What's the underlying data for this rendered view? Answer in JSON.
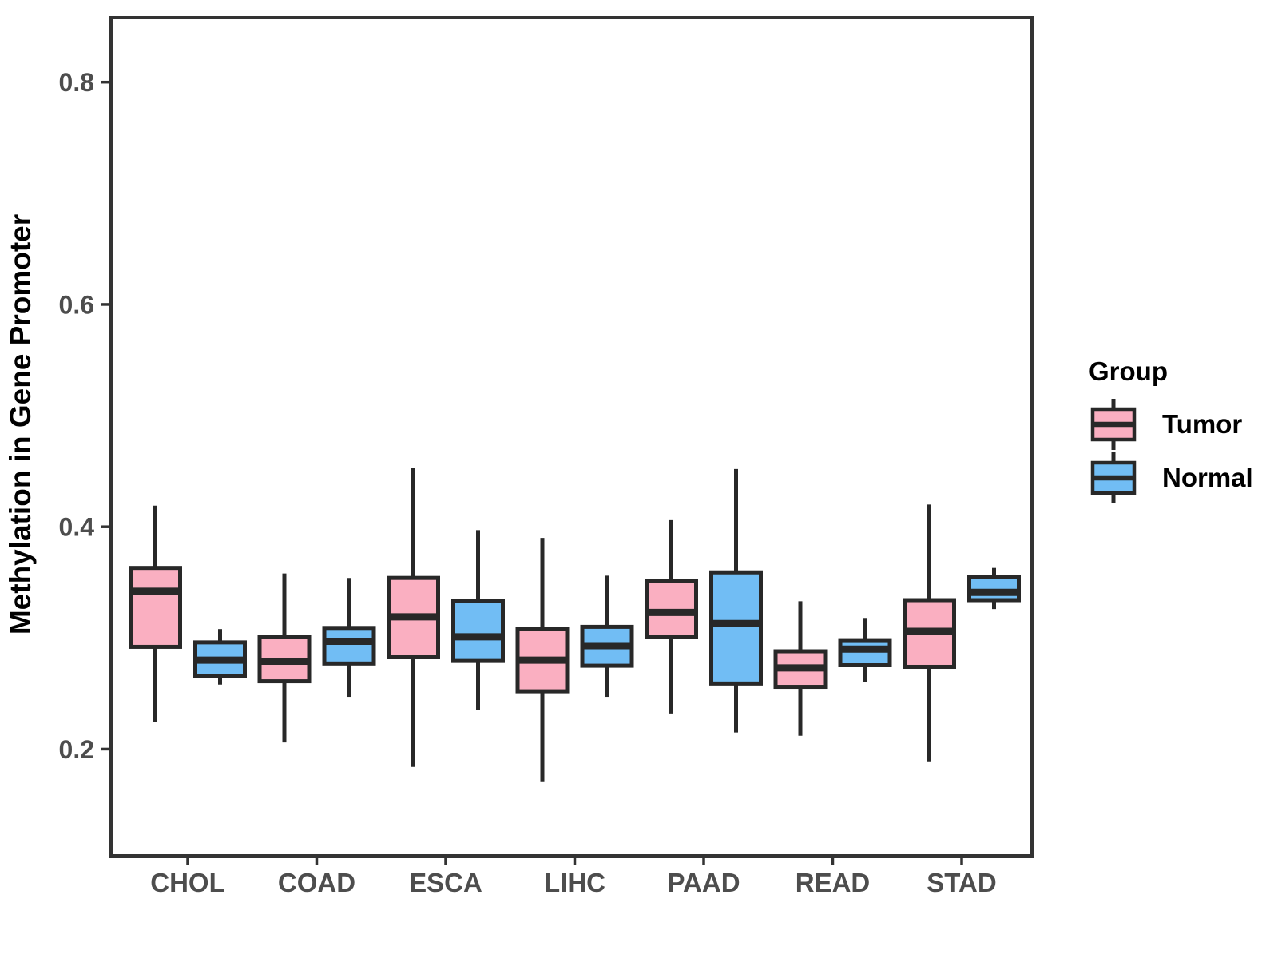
{
  "figure": {
    "background_color": "#FFFFFF",
    "frame_color": "#333333",
    "tick_color": "#333333",
    "tick_label_color": "#4D4D4D",
    "title_text_color": "#000000",
    "box_border_color": "#282828"
  },
  "chart_data": {
    "type": "boxplot",
    "title": "",
    "xlabel": "",
    "ylabel": "Methylation in Gene Promoter",
    "categories": [
      "CHOL",
      "COAD",
      "ESCA",
      "LIHC",
      "PAAD",
      "READ",
      "STAD"
    ],
    "y_ticks": [
      {
        "value": 0.2,
        "label": "0.2"
      },
      {
        "value": 0.4,
        "label": "0.4"
      },
      {
        "value": 0.6,
        "label": "0.6"
      },
      {
        "value": 0.8,
        "label": "0.8"
      }
    ],
    "ylim": [
      0.104,
      0.858
    ],
    "grid": false,
    "legend": {
      "title": "Group",
      "position": "right",
      "entries": [
        "Tumor",
        "Normal"
      ]
    },
    "series": [
      {
        "name": "Tumor",
        "color": "#FAAFC1",
        "stats": [
          {
            "category": "CHOL",
            "whisker_low": 0.224,
            "q1": 0.292,
            "median": 0.342,
            "q3": 0.363,
            "whisker_high": 0.419
          },
          {
            "category": "COAD",
            "whisker_low": 0.206,
            "q1": 0.261,
            "median": 0.279,
            "q3": 0.301,
            "whisker_high": 0.358
          },
          {
            "category": "ESCA",
            "whisker_low": 0.184,
            "q1": 0.283,
            "median": 0.319,
            "q3": 0.354,
            "whisker_high": 0.453
          },
          {
            "category": "LIHC",
            "whisker_low": 0.171,
            "q1": 0.252,
            "median": 0.28,
            "q3": 0.308,
            "whisker_high": 0.39
          },
          {
            "category": "PAAD",
            "whisker_low": 0.232,
            "q1": 0.301,
            "median": 0.323,
            "q3": 0.351,
            "whisker_high": 0.406
          },
          {
            "category": "READ",
            "whisker_low": 0.212,
            "q1": 0.256,
            "median": 0.273,
            "q3": 0.288,
            "whisker_high": 0.333
          },
          {
            "category": "STAD",
            "whisker_low": 0.189,
            "q1": 0.274,
            "median": 0.306,
            "q3": 0.334,
            "whisker_high": 0.42
          }
        ]
      },
      {
        "name": "Normal",
        "color": "#71BDF4",
        "stats": [
          {
            "category": "CHOL",
            "whisker_low": 0.258,
            "q1": 0.266,
            "median": 0.28,
            "q3": 0.296,
            "whisker_high": 0.308
          },
          {
            "category": "COAD",
            "whisker_low": 0.247,
            "q1": 0.277,
            "median": 0.297,
            "q3": 0.309,
            "whisker_high": 0.354
          },
          {
            "category": "ESCA",
            "whisker_low": 0.235,
            "q1": 0.28,
            "median": 0.301,
            "q3": 0.333,
            "whisker_high": 0.397
          },
          {
            "category": "LIHC",
            "whisker_low": 0.247,
            "q1": 0.275,
            "median": 0.293,
            "q3": 0.31,
            "whisker_high": 0.356
          },
          {
            "category": "PAAD",
            "whisker_low": 0.215,
            "q1": 0.259,
            "median": 0.313,
            "q3": 0.359,
            "whisker_high": 0.452
          },
          {
            "category": "READ",
            "whisker_low": 0.26,
            "q1": 0.276,
            "median": 0.29,
            "q3": 0.298,
            "whisker_high": 0.318
          },
          {
            "category": "STAD",
            "whisker_low": 0.326,
            "q1": 0.334,
            "median": 0.341,
            "q3": 0.355,
            "whisker_high": 0.363
          }
        ]
      }
    ]
  }
}
